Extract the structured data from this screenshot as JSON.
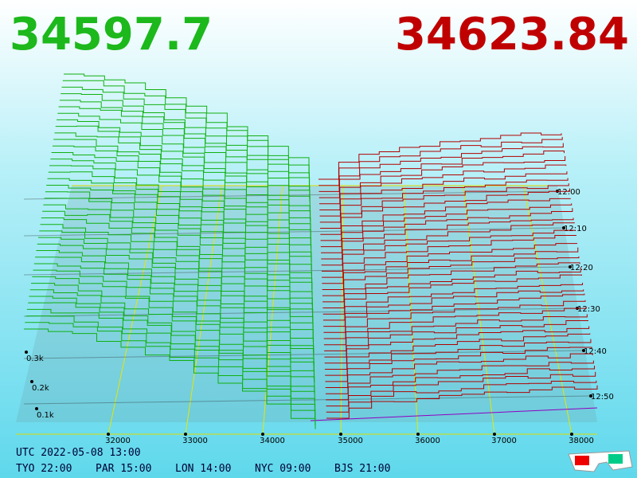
{
  "header": {
    "bid": "34597.7",
    "ask": "34623.84"
  },
  "price_axis": [
    "32000",
    "33000",
    "34000",
    "35000",
    "36000",
    "37000",
    "38000"
  ],
  "depth_axis": [
    "0.3k",
    "0.2k",
    "0.1k"
  ],
  "time_axis": [
    "12:00",
    "12:10",
    "12:20",
    "12:30",
    "12:40",
    "12:50"
  ],
  "footer": {
    "utc": "UTC 2022-05-08 13:00",
    "cities": [
      "TYO 22:00",
      "PAR 15:00",
      "LON 14:00",
      "NYC 09:00",
      "BJS 21:00"
    ]
  }
}
